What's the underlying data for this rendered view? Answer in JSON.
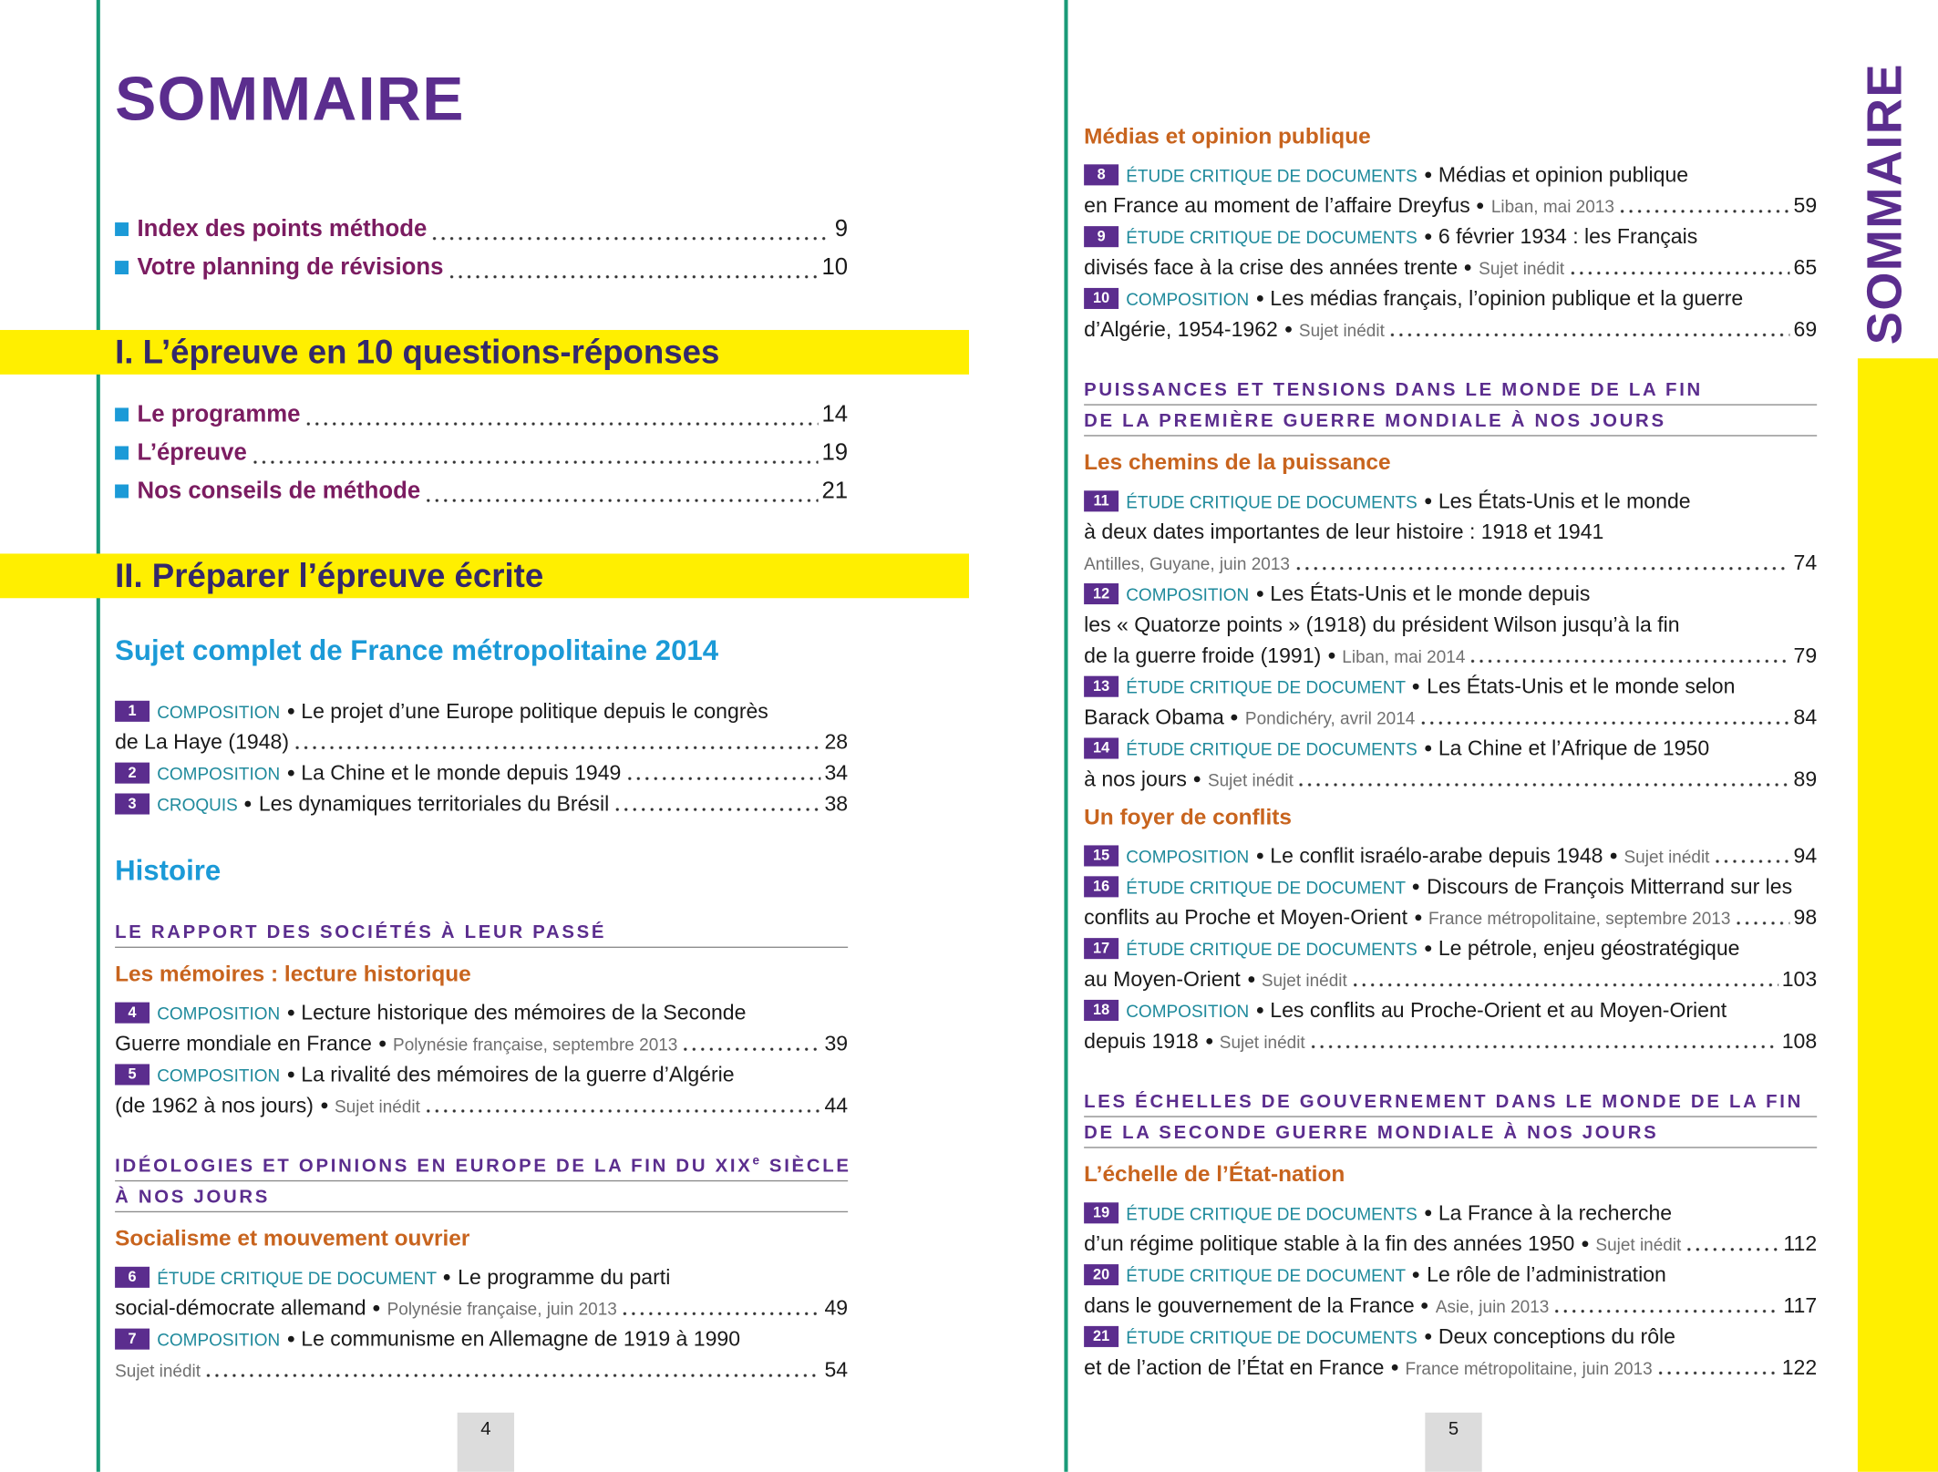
{
  "left_page": {
    "title": "SOMMAIRE",
    "folio": "4",
    "blocks": [
      {
        "type": "intro",
        "label": "Index des points méthode",
        "page": "9"
      },
      {
        "type": "intro",
        "label": "Votre planning de révisions",
        "page": "10"
      },
      {
        "type": "part",
        "title": "I. L’épreuve en 10 questions-réponses"
      },
      {
        "type": "intro",
        "label": "Le programme",
        "page": "14"
      },
      {
        "type": "intro",
        "label": "L’épreuve",
        "page": "19"
      },
      {
        "type": "intro",
        "label": "Nos conseils de méthode",
        "page": "21"
      },
      {
        "type": "part",
        "title": "II. Préparer l’épreuve écrite"
      },
      {
        "type": "heading",
        "text": "Sujet complet de France métropolitaine 2014"
      },
      {
        "type": "entry",
        "number": "1",
        "kind": "COMPOSITION",
        "lines": [
          "Le projet d’une Europe politique depuis le congrès",
          "de La Haye (1948)"
        ],
        "page": "28"
      },
      {
        "type": "entry",
        "number": "2",
        "kind": "COMPOSITION",
        "lines": [
          "La Chine et le monde depuis 1949"
        ],
        "page": "34"
      },
      {
        "type": "entry",
        "number": "3",
        "kind": "CROQUIS",
        "lines": [
          "Les dynamiques territoriales du Brésil"
        ],
        "page": "38"
      },
      {
        "type": "heading",
        "text": "Histoire"
      },
      {
        "type": "theme",
        "lines": [
          [
            "LE RAPPORT DES SOCIÉTÉS À LEUR PASSÉ"
          ]
        ]
      },
      {
        "type": "subtheme",
        "text": "Les mémoires : lecture historique"
      },
      {
        "type": "entry",
        "number": "4",
        "kind": "COMPOSITION",
        "lines": [
          "Lecture historique des mémoires de la Seconde",
          "Guerre mondiale en France"
        ],
        "source": "Polynésie française, septembre 2013",
        "page": "39"
      },
      {
        "type": "entry",
        "number": "5",
        "kind": "COMPOSITION",
        "lines": [
          "La rivalité des mémoires de la guerre d’Algérie",
          "(de 1962 à nos jours)"
        ],
        "source": "Sujet inédit",
        "page": "44"
      },
      {
        "type": "theme",
        "lines": [
          [
            "IDÉOLOGIES ET OPINIONS EN EUROPE DE LA FIN DU XIX",
            {
              "sup": "e"
            },
            "SIÈCLE"
          ],
          [
            "À NOS JOURS"
          ]
        ]
      },
      {
        "type": "subtheme",
        "text": "Socialisme et mouvement ouvrier"
      },
      {
        "type": "entry",
        "number": "6",
        "kind": "ÉTUDE CRITIQUE DE DOCUMENT",
        "lines": [
          "Le programme du parti",
          "social-démocrate allemand"
        ],
        "source": "Polynésie française, juin 2013",
        "page": "49"
      },
      {
        "type": "entry",
        "number": "7",
        "kind": "COMPOSITION",
        "lines": [
          "Le communisme en Allemagne de 1919 à 1990"
        ],
        "footer": "Sujet inédit",
        "page": "54"
      }
    ]
  },
  "right_page": {
    "side_title": "SOMMAIRE",
    "folio": "5",
    "blocks": [
      {
        "type": "subtheme",
        "text": "Médias et opinion publique"
      },
      {
        "type": "entry",
        "number": "8",
        "kind": "ÉTUDE CRITIQUE DE DOCUMENTS",
        "lines": [
          "Médias et opinion publique",
          "en France au moment de l’affaire Dreyfus"
        ],
        "source": "Liban, mai 2013",
        "page": "59"
      },
      {
        "type": "entry",
        "number": "9",
        "kind": "ÉTUDE CRITIQUE DE DOCUMENTS",
        "lines": [
          "6 février 1934 : les Français",
          "divisés face à la crise des années trente"
        ],
        "source": "Sujet inédit",
        "page": "65"
      },
      {
        "type": "entry",
        "number": "10",
        "kind": "COMPOSITION",
        "lines": [
          "Les médias français, l’opinion publique et la guerre",
          "d’Algérie, 1954-1962"
        ],
        "source": "Sujet inédit",
        "page": "69"
      },
      {
        "type": "theme",
        "lines": [
          [
            "PUISSANCES ET TENSIONS DANS LE MONDE DE LA FIN"
          ],
          [
            "DE LA PREMIÈRE GUERRE MONDIALE À NOS JOURS"
          ]
        ]
      },
      {
        "type": "subtheme",
        "text": "Les chemins de la puissance"
      },
      {
        "type": "entry",
        "number": "11",
        "kind": "ÉTUDE CRITIQUE DE DOCUMENTS",
        "lines": [
          "Les États-Unis et le monde",
          "à deux dates importantes de leur histoire : 1918 et 1941"
        ],
        "footer": "Antilles, Guyane, juin 2013",
        "page": "74"
      },
      {
        "type": "entry",
        "number": "12",
        "kind": "COMPOSITION",
        "lines": [
          "Les États-Unis et le monde depuis",
          "les « Quatorze points » (1918) du président Wilson jusqu’à la fin",
          "de la guerre froide (1991)"
        ],
        "source": "Liban, mai 2014",
        "page": "79"
      },
      {
        "type": "entry",
        "number": "13",
        "kind": "ÉTUDE CRITIQUE DE DOCUMENT",
        "lines": [
          "Les États-Unis et le monde selon",
          "Barack Obama"
        ],
        "source": "Pondichéry, avril 2014",
        "page": "84"
      },
      {
        "type": "entry",
        "number": "14",
        "kind": "ÉTUDE CRITIQUE DE DOCUMENTS",
        "lines": [
          "La Chine et l’Afrique de 1950",
          "à nos jours"
        ],
        "source": "Sujet inédit",
        "page": "89"
      },
      {
        "type": "subtheme",
        "text": "Un foyer de conflits"
      },
      {
        "type": "entry",
        "number": "15",
        "kind": "COMPOSITION",
        "lines": [
          "Le conflit israélo-arabe depuis 1948"
        ],
        "source": "Sujet inédit",
        "page": "94"
      },
      {
        "type": "entry",
        "number": "16",
        "kind": "ÉTUDE CRITIQUE DE DOCUMENT",
        "lines": [
          "Discours de François Mitterrand sur les",
          "conflits au Proche et Moyen-Orient"
        ],
        "source": "France métropolitaine, septembre 2013",
        "page": "98"
      },
      {
        "type": "entry",
        "number": "17",
        "kind": "ÉTUDE CRITIQUE DE DOCUMENTS",
        "lines": [
          "Le pétrole, enjeu géostratégique",
          "au Moyen-Orient"
        ],
        "source": "Sujet inédit",
        "page": "103"
      },
      {
        "type": "entry",
        "number": "18",
        "kind": "COMPOSITION",
        "lines": [
          "Les conflits au Proche-Orient et au Moyen-Orient",
          "depuis 1918"
        ],
        "source": "Sujet inédit",
        "page": "108"
      },
      {
        "type": "theme",
        "lines": [
          [
            "LES ÉCHELLES DE GOUVERNEMENT DANS LE MONDE DE LA FIN"
          ],
          [
            "DE LA SECONDE GUERRE MONDIALE À NOS JOURS"
          ]
        ]
      },
      {
        "type": "subtheme",
        "text": "L’échelle de l’État-nation"
      },
      {
        "type": "entry",
        "number": "19",
        "kind": "ÉTUDE CRITIQUE DE DOCUMENTS",
        "lines": [
          "La France à la recherche",
          "d’un régime politique stable à la fin des années 1950"
        ],
        "source": "Sujet inédit",
        "page": "112"
      },
      {
        "type": "entry",
        "number": "20",
        "kind": "ÉTUDE CRITIQUE DE DOCUMENT",
        "lines": [
          "Le rôle de l’administration",
          "dans le gouvernement de la France"
        ],
        "source": "Asie, juin 2013",
        "page": "117"
      },
      {
        "type": "entry",
        "number": "21",
        "kind": "ÉTUDE CRITIQUE DE DOCUMENTS",
        "lines": [
          "Deux conceptions du rôle",
          "et de l’action de l’État en France"
        ],
        "source": "France métropolitaine, juin 2013",
        "page": "122"
      }
    ]
  }
}
